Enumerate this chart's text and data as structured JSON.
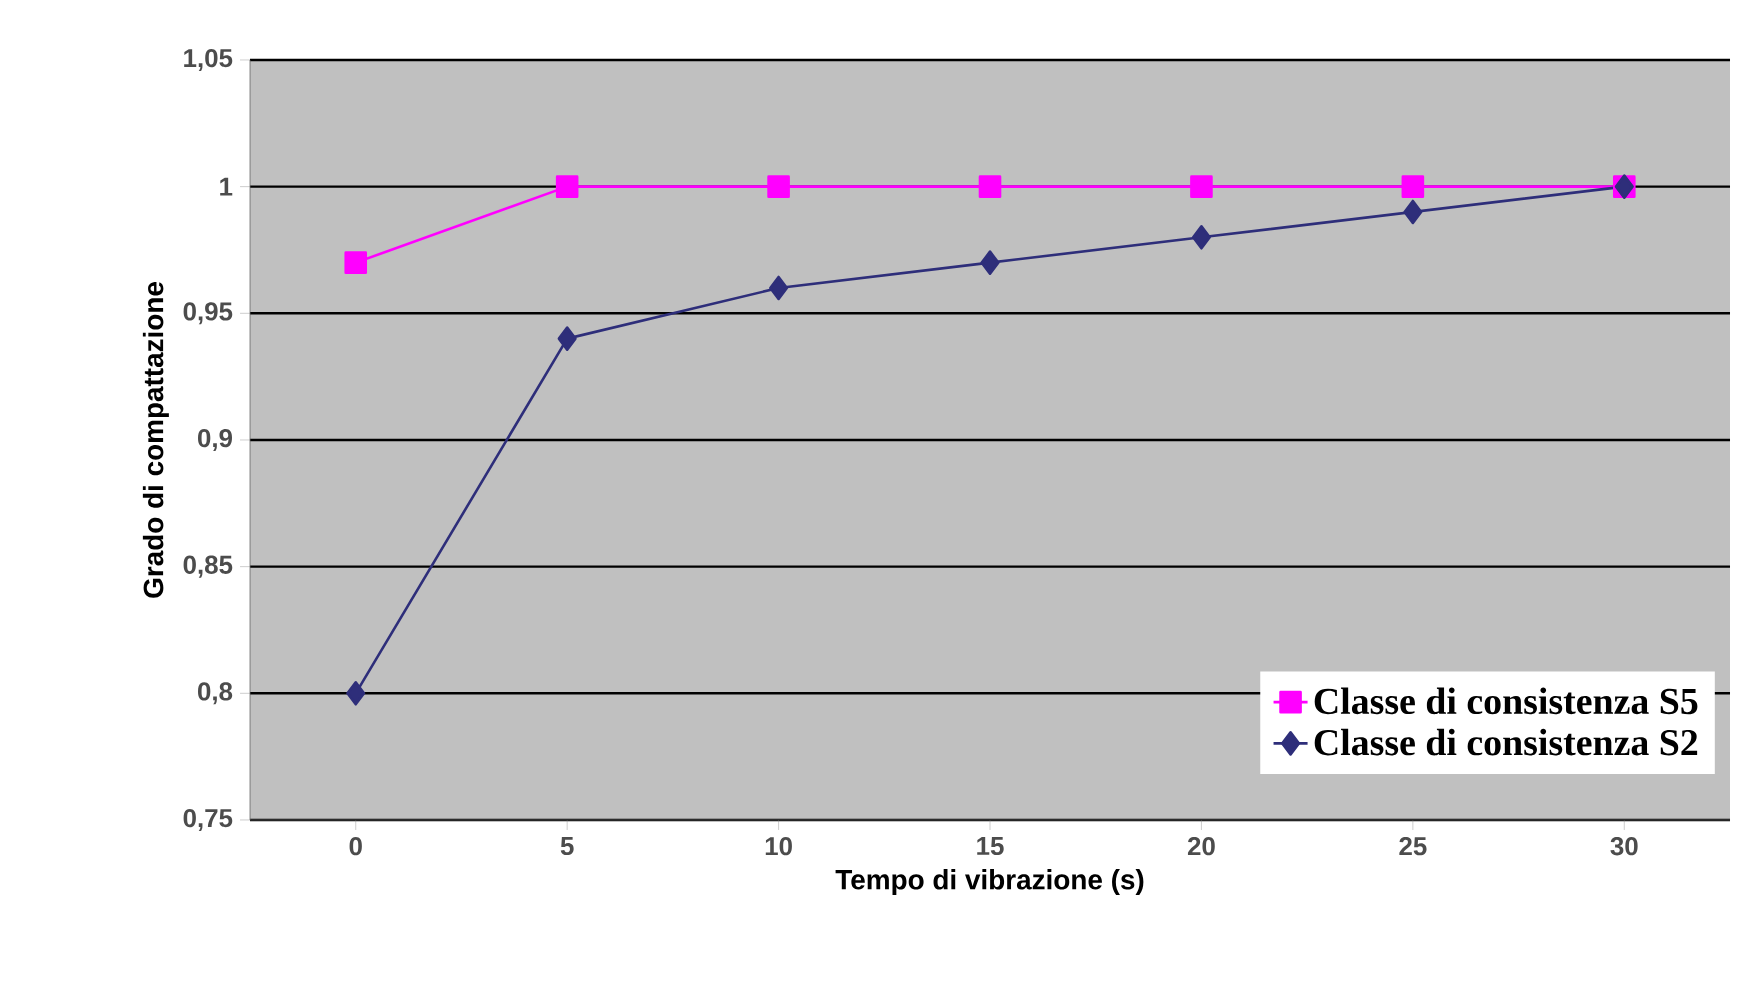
{
  "chart_data": {
    "type": "line",
    "xlabel": "Tempo di vibrazione (s)",
    "ylabel": "Grado di compattazione",
    "categories": [
      "0",
      "5",
      "10",
      "15",
      "20",
      "25",
      "30"
    ],
    "ylim": [
      0.75,
      1.05
    ],
    "yticks": [
      {
        "value": 0.75,
        "label": "0,75"
      },
      {
        "value": 0.8,
        "label": "0,8"
      },
      {
        "value": 0.85,
        "label": "0,85"
      },
      {
        "value": 0.9,
        "label": "0,9"
      },
      {
        "value": 0.95,
        "label": "0,95"
      },
      {
        "value": 1,
        "label": "1"
      },
      {
        "value": 1.05,
        "label": "1,05"
      }
    ],
    "grid": "y",
    "legend": "bottom right",
    "series": [
      {
        "name": "Classe di consistenza S5",
        "color": "#ff00ff",
        "marker": "square",
        "values": [
          0.97,
          1,
          1,
          1,
          1,
          1,
          1
        ]
      },
      {
        "name": "Classe di consistenza S2",
        "color": "#2e2e7a",
        "marker": "diamond",
        "values": [
          0.8,
          0.94,
          0.96,
          0.97,
          0.98,
          0.99,
          1
        ]
      }
    ]
  }
}
